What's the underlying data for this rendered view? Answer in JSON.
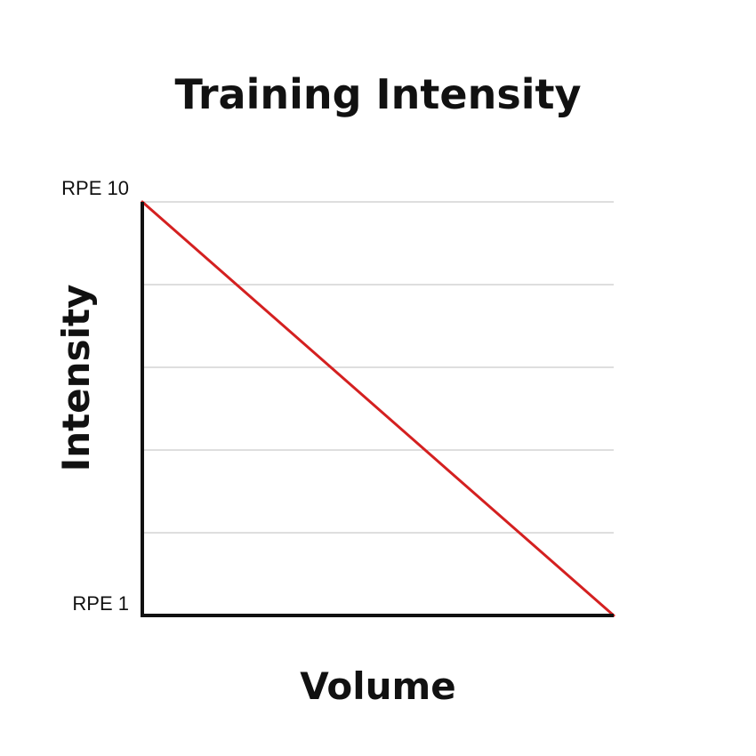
{
  "chart_data": {
    "type": "line",
    "title": "Training Intensity",
    "xlabel": "Volume",
    "ylabel": "Intensity",
    "ylim": [
      1,
      10
    ],
    "y_tick_labels": [
      {
        "value": 10,
        "label": "RPE 10"
      },
      {
        "value": 1,
        "label": "RPE 1"
      }
    ],
    "grid": true,
    "series": [
      {
        "color": "#d42020",
        "points": [
          {
            "x": 0,
            "y": 10
          },
          {
            "x": 1,
            "y": 1
          }
        ]
      }
    ]
  }
}
